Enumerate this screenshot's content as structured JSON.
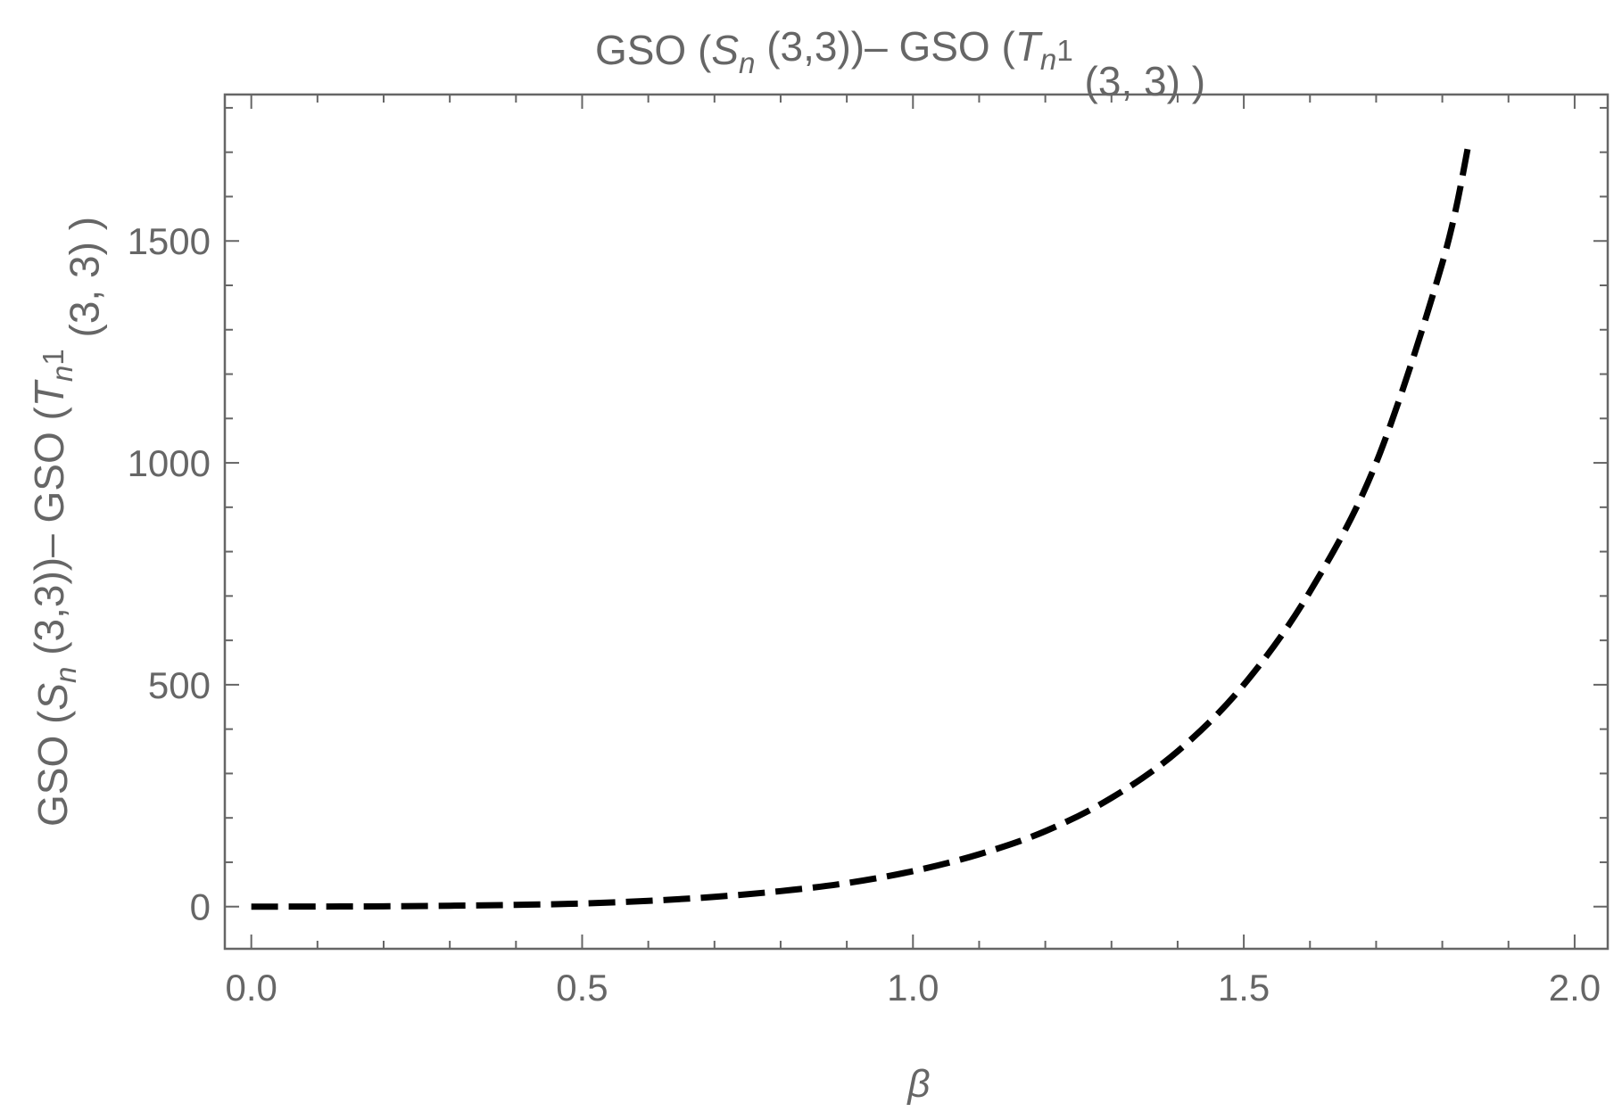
{
  "chart_data": {
    "type": "line",
    "title": {
      "parts": [
        {
          "text": "GSO  (",
          "style": "normal"
        },
        {
          "text": "S",
          "style": "italic"
        },
        {
          "text": "n",
          "style": "italic-sub"
        },
        {
          "text": "  (3,3))– GSO  (",
          "style": "normal"
        },
        {
          "text": "T",
          "style": "italic"
        },
        {
          "text": "n",
          "style": "italic-sub"
        },
        {
          "text": "1",
          "style": "sup"
        },
        {
          "text": " (3, 3)  )",
          "style": "normal"
        }
      ]
    },
    "xlabel": "β",
    "ylabel": {
      "parts": [
        {
          "text": "GSO  (",
          "style": "normal"
        },
        {
          "text": "S",
          "style": "italic"
        },
        {
          "text": "n",
          "style": "italic-sub"
        },
        {
          "text": "  (3,3))– GSO  (",
          "style": "normal"
        },
        {
          "text": "T",
          "style": "italic"
        },
        {
          "text": "n",
          "style": "italic-sub"
        },
        {
          "text": "1",
          "style": "sup"
        },
        {
          "text": " (3, 3)  )",
          "style": "normal"
        }
      ]
    },
    "xlim": [
      -0.04,
      2.05
    ],
    "ylim": [
      -95,
      1830
    ],
    "xticks": [
      {
        "value": 0.0,
        "label": "0.0"
      },
      {
        "value": 0.5,
        "label": "0.5"
      },
      {
        "value": 1.0,
        "label": "1.0"
      },
      {
        "value": 1.5,
        "label": "1.5"
      },
      {
        "value": 2.0,
        "label": "2.0"
      }
    ],
    "yticks": [
      {
        "value": 0,
        "label": "0"
      },
      {
        "value": 500,
        "label": "500"
      },
      {
        "value": 1000,
        "label": "1000"
      },
      {
        "value": 1500,
        "label": "1500"
      }
    ],
    "x_minor_step": 0.1,
    "y_minor_step": 100,
    "grid": false,
    "series": [
      {
        "style": "dashed",
        "color": "#000000",
        "x": [
          0.0,
          0.1,
          0.2,
          0.3,
          0.4,
          0.5,
          0.6,
          0.7,
          0.8,
          0.9,
          1.0,
          1.1,
          1.2,
          1.3,
          1.4,
          1.5,
          1.6,
          1.7,
          1.8,
          1.84
        ],
        "y": [
          0,
          0.2,
          0.8,
          2,
          4,
          7,
          13,
          22,
          35,
          53,
          80,
          118,
          170,
          245,
          350,
          500,
          710,
          1000,
          1450,
          1720
        ]
      }
    ]
  }
}
